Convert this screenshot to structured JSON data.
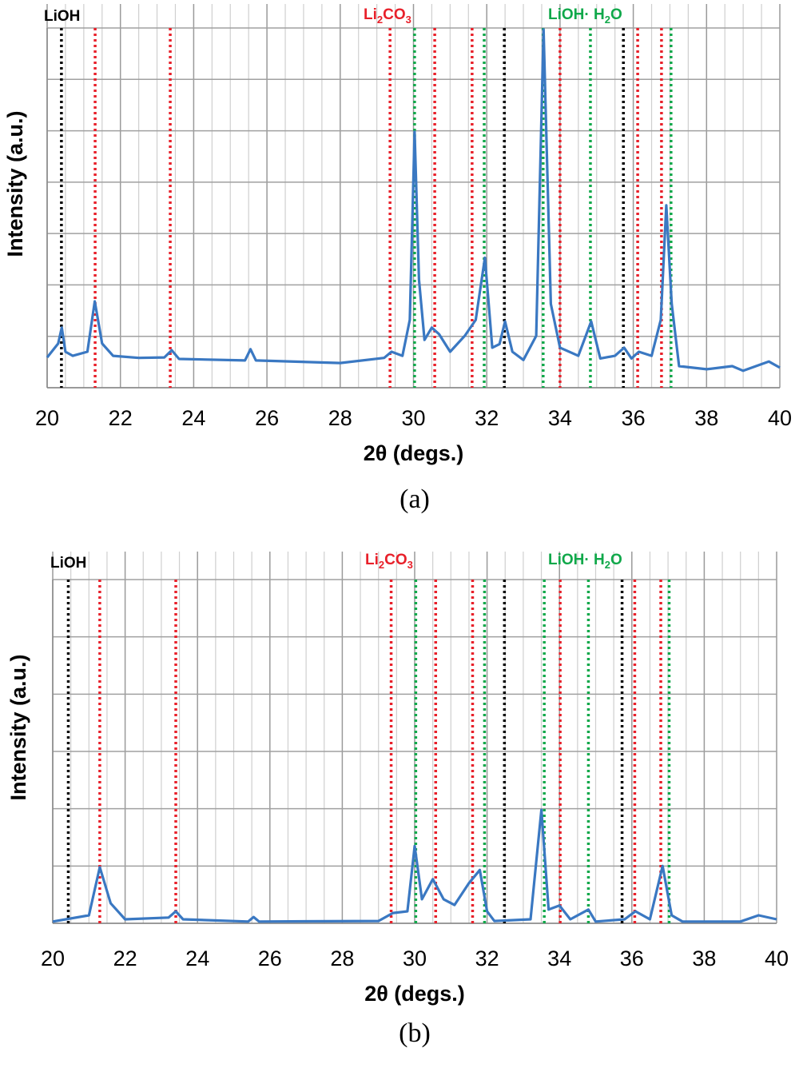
{
  "legend": {
    "lioh": {
      "text": "LiOH",
      "color": "#000000"
    },
    "li2co3": {
      "a": "Li",
      "b": "2",
      "c": "CO",
      "d": "3",
      "color": "#e8202a"
    },
    "lioh_h2o": {
      "a": "LiOH· H",
      "b": "2",
      "c": "O",
      "color": "#10a84a"
    }
  },
  "captions": {
    "a": "(a)",
    "b": "(b)"
  },
  "chart_data": [
    {
      "type": "line",
      "panel": "(a)",
      "xlabel": "2θ (degs.)",
      "ylabel": "Intensity (a.u.)",
      "xlim": [
        20,
        40
      ],
      "ylim": [
        0,
        7
      ],
      "xticks": [
        20,
        22,
        24,
        26,
        28,
        30,
        32,
        34,
        36,
        38,
        40
      ],
      "grid": true,
      "series_color": "#3a78c2",
      "reference_lines": {
        "LiOH": [
          20.39,
          32.48,
          35.73
        ],
        "Li2CO3": [
          21.31,
          23.36,
          29.36,
          30.58,
          31.6,
          34.0,
          36.12,
          36.77
        ],
        "LiOH·H2O": [
          30.03,
          31.93,
          33.54,
          34.83,
          37.03
        ]
      },
      "x": [
        20.0,
        20.3,
        20.4,
        20.5,
        20.7,
        21.1,
        21.3,
        21.5,
        21.8,
        22.5,
        23.2,
        23.4,
        23.6,
        25.4,
        25.55,
        25.7,
        28.0,
        29.2,
        29.4,
        29.7,
        29.9,
        30.03,
        30.15,
        30.3,
        30.5,
        30.7,
        31.0,
        31.4,
        31.7,
        31.95,
        32.15,
        32.35,
        32.5,
        32.7,
        33.0,
        33.35,
        33.55,
        33.75,
        34.0,
        34.5,
        34.85,
        35.1,
        35.5,
        35.75,
        35.95,
        36.15,
        36.5,
        36.75,
        36.9,
        37.05,
        37.25,
        38.0,
        38.7,
        39.0,
        39.7,
        40.0
      ],
      "y": [
        0.59,
        0.86,
        1.17,
        0.7,
        0.62,
        0.7,
        1.68,
        0.86,
        0.62,
        0.58,
        0.59,
        0.73,
        0.56,
        0.53,
        0.75,
        0.53,
        0.48,
        0.58,
        0.7,
        0.62,
        1.32,
        4.98,
        2.1,
        0.93,
        1.17,
        1.04,
        0.7,
        1.01,
        1.32,
        2.53,
        0.78,
        0.85,
        1.29,
        0.7,
        0.54,
        1.01,
        6.97,
        1.63,
        0.78,
        0.62,
        1.29,
        0.57,
        0.62,
        0.78,
        0.57,
        0.7,
        0.62,
        1.32,
        3.55,
        1.63,
        0.42,
        0.36,
        0.42,
        0.33,
        0.51,
        0.39
      ]
    },
    {
      "type": "line",
      "panel": "(b)",
      "xlabel": "2θ (degs.)",
      "ylabel": "Intensity (a.u.)",
      "xlim": [
        20,
        40
      ],
      "ylim": [
        0,
        6
      ],
      "xticks": [
        20,
        22,
        24,
        26,
        28,
        30,
        32,
        34,
        36,
        38,
        40
      ],
      "grid": true,
      "series_color": "#3a78c2",
      "reference_lines": {
        "LiOH": [
          20.43,
          32.48,
          35.73
        ],
        "Li2CO3": [
          21.3,
          23.4,
          29.35,
          30.58,
          31.6,
          34.02,
          36.08,
          36.8
        ],
        "LiOH·H2O": [
          30.03,
          31.93,
          33.58,
          34.8,
          37.03
        ]
      },
      "x": [
        20.0,
        21.0,
        21.3,
        21.6,
        22.0,
        23.2,
        23.4,
        23.6,
        25.4,
        25.55,
        25.7,
        29.0,
        29.4,
        29.8,
        30.0,
        30.2,
        30.5,
        30.8,
        31.1,
        31.5,
        31.8,
        32.0,
        32.2,
        33.2,
        33.5,
        33.7,
        34.0,
        34.3,
        34.8,
        35.0,
        35.8,
        36.1,
        36.5,
        36.85,
        37.1,
        37.4,
        39.0,
        39.5,
        40.0
      ],
      "y": [
        0.03,
        0.14,
        0.98,
        0.35,
        0.07,
        0.1,
        0.21,
        0.07,
        0.03,
        0.11,
        0.03,
        0.04,
        0.18,
        0.21,
        1.35,
        0.42,
        0.77,
        0.42,
        0.32,
        0.7,
        0.93,
        0.21,
        0.04,
        0.07,
        1.98,
        0.24,
        0.31,
        0.07,
        0.24,
        0.03,
        0.07,
        0.21,
        0.07,
        1.0,
        0.14,
        0.03,
        0.03,
        0.14,
        0.07
      ]
    }
  ]
}
